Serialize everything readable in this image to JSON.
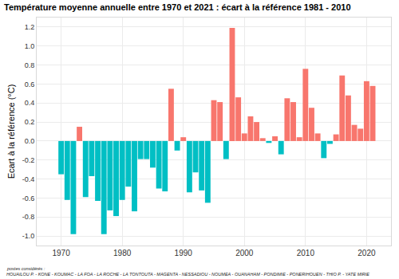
{
  "chart_data": {
    "type": "bar",
    "title": "Température moyenne annuelle entre 1970 et 2021 : écart à la référence 1981 - 2010",
    "y_label": "Ecart à la référence (°C)",
    "annotations": [
      "postes considérés :",
      "HOUAILOU P. - KONE - KOUMAC - LA FOA - LA ROCHE - LA TONTOUTA - MAGENTA - NESSADIOU - NOUMEA - OUANAHAM - PONDIMIE - PONERIHOUEN - THIO P. - YATE MIRIE"
    ],
    "x": [
      1970,
      1971,
      1972,
      1973,
      1974,
      1975,
      1976,
      1977,
      1978,
      1979,
      1980,
      1981,
      1982,
      1983,
      1984,
      1985,
      1986,
      1987,
      1988,
      1989,
      1990,
      1991,
      1992,
      1993,
      1994,
      1995,
      1996,
      1997,
      1998,
      1999,
      2000,
      2001,
      2002,
      2003,
      2004,
      2005,
      2006,
      2007,
      2008,
      2009,
      2010,
      2011,
      2012,
      2013,
      2014,
      2015,
      2016,
      2017,
      2018,
      2019,
      2020,
      2021
    ],
    "values": [
      -0.35,
      -0.62,
      -0.98,
      0.15,
      -0.59,
      -0.37,
      -0.63,
      -0.98,
      -0.73,
      -0.79,
      -0.62,
      -0.48,
      -0.74,
      -0.19,
      -0.19,
      -0.28,
      -0.5,
      -0.53,
      0.55,
      -0.1,
      0.04,
      -0.54,
      -0.33,
      -0.52,
      -0.65,
      0.43,
      0.41,
      -0.19,
      1.19,
      0.46,
      0.08,
      0.26,
      0.2,
      0.03,
      -0.02,
      0.05,
      -0.14,
      0.45,
      0.41,
      0.04,
      0.76,
      0.35,
      0.08,
      -0.18,
      -0.03,
      0.07,
      0.69,
      0.48,
      0.17,
      0.13,
      0.63,
      0.58
    ],
    "colors": [
      "#00BFC4",
      "#00BFC4",
      "#00BFC4",
      "#F8766D",
      "#00BFC4",
      "#00BFC4",
      "#00BFC4",
      "#00BFC4",
      "#00BFC4",
      "#00BFC4",
      "#00BFC4",
      "#00BFC4",
      "#00BFC4",
      "#00BFC4",
      "#00BFC4",
      "#00BFC4",
      "#00BFC4",
      "#00BFC4",
      "#F8766D",
      "#00BFC4",
      "#F8766D",
      "#00BFC4",
      "#00BFC4",
      "#00BFC4",
      "#00BFC4",
      "#F8766D",
      "#F8766D",
      "#00BFC4",
      "#F8766D",
      "#F8766D",
      "#F8766D",
      "#F8766D",
      "#F8766D",
      "#F8766D",
      "#00BFC4",
      "#F8766D",
      "#00BFC4",
      "#F8766D",
      "#F8766D",
      "#F8766D",
      "#F8766D",
      "#F8766D",
      "#F8766D",
      "#00BFC4",
      "#00BFC4",
      "#F8766D",
      "#F8766D",
      "#F8766D",
      "#F8766D",
      "#F8766D",
      "#F8766D",
      "#F8766D"
    ],
    "xlim": [
      1966,
      2024
    ],
    "xticks": [
      1970,
      1980,
      1990,
      2000,
      2010,
      2020
    ],
    "ylim": [
      -1.1,
      1.3
    ],
    "yticks": [
      {
        "value": -1.0,
        "label": "-1.0"
      },
      -0.8,
      -0.6,
      -0.4,
      -0.2,
      {
        "value": 0,
        "label": "0.0"
      },
      0.2,
      0.4,
      0.6,
      0.8,
      {
        "value": 1.0,
        "label": "1.0"
      },
      1.2
    ],
    "grid": true
  }
}
